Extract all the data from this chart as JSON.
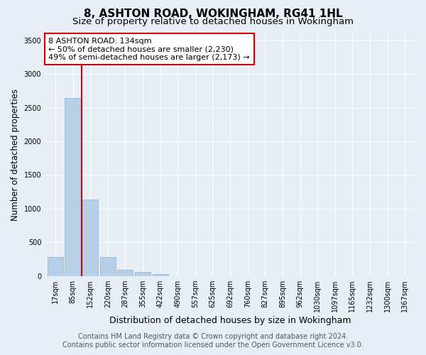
{
  "title": "8, ASHTON ROAD, WOKINGHAM, RG41 1HL",
  "subtitle": "Size of property relative to detached houses in Wokingham",
  "xlabel": "Distribution of detached houses by size in Wokingham",
  "ylabel": "Number of detached properties",
  "footer_line1": "Contains HM Land Registry data © Crown copyright and database right 2024.",
  "footer_line2": "Contains public sector information licensed under the Open Government Licence v3.0.",
  "bin_labels": [
    "17sqm",
    "85sqm",
    "152sqm",
    "220sqm",
    "287sqm",
    "355sqm",
    "422sqm",
    "490sqm",
    "557sqm",
    "625sqm",
    "692sqm",
    "760sqm",
    "827sqm",
    "895sqm",
    "962sqm",
    "1030sqm",
    "1097sqm",
    "1165sqm",
    "1232sqm",
    "1300sqm",
    "1367sqm"
  ],
  "bar_values": [
    280,
    2640,
    1140,
    280,
    95,
    55,
    30,
    0,
    0,
    0,
    0,
    0,
    0,
    0,
    0,
    0,
    0,
    0,
    0,
    0,
    0
  ],
  "bar_color": "#b8cfe8",
  "bar_edge_color": "#90afd0",
  "property_line_label": "8 ASHTON ROAD: 134sqm",
  "annotation_line1": "← 50% of detached houses are smaller (2,230)",
  "annotation_line2": "49% of semi-detached houses are larger (2,173) →",
  "annotation_box_color": "#ffffff",
  "annotation_box_edge": "#cc0000",
  "line_color": "#cc0000",
  "line_x_index": 1.5,
  "ylim": [
    0,
    3600
  ],
  "yticks": [
    0,
    500,
    1000,
    1500,
    2000,
    2500,
    3000,
    3500
  ],
  "bg_color": "#e8eef5",
  "plot_bg_color": "#e8eef5",
  "grid_color": "#ffffff",
  "title_fontsize": 11,
  "subtitle_fontsize": 9.5,
  "tick_fontsize": 7,
  "ylabel_fontsize": 8.5,
  "xlabel_fontsize": 9,
  "annotation_fontsize": 8,
  "footer_fontsize": 7
}
